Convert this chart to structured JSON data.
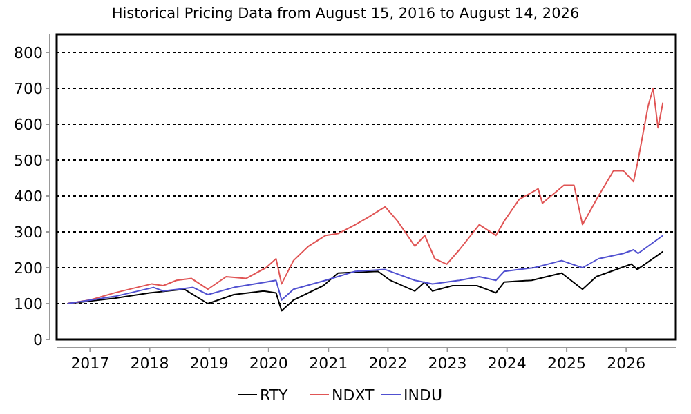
{
  "chart_data": {
    "type": "line",
    "title": "Historical Pricing Data from August 15, 2016 to August 14, 2026",
    "xlim": [
      "2016-06-10",
      "2026-11-01"
    ],
    "xticks": [
      "2017",
      "2018",
      "2019",
      "2020",
      "2021",
      "2022",
      "2023",
      "2024",
      "2025",
      "2026"
    ],
    "ylim": [
      0,
      850
    ],
    "yticks": [
      0,
      100,
      200,
      300,
      400,
      500,
      600,
      700,
      800
    ],
    "grid": "y",
    "legend": "bottom",
    "line_style": "solid",
    "series": [
      {
        "name": "RTY",
        "color": "#000000",
        "x": [
          "2016-08-15",
          "2017-06-01",
          "2018-01-01",
          "2018-08-01",
          "2018-12-24",
          "2019-06-01",
          "2019-12-01",
          "2020-02-15",
          "2020-03-20",
          "2020-06-01",
          "2020-12-01",
          "2021-03-01",
          "2021-11-01",
          "2022-01-15",
          "2022-06-15",
          "2022-08-15",
          "2022-10-01",
          "2023-02-01",
          "2023-07-01",
          "2023-10-25",
          "2023-12-15",
          "2024-06-01",
          "2024-12-01",
          "2025-04-08",
          "2025-07-01",
          "2025-12-01",
          "2026-02-01",
          "2026-03-10",
          "2026-08-14"
        ],
        "values": [
          100,
          115,
          130,
          140,
          100,
          125,
          135,
          130,
          80,
          110,
          150,
          185,
          190,
          165,
          135,
          160,
          135,
          150,
          150,
          130,
          160,
          165,
          185,
          140,
          175,
          200,
          210,
          195,
          245
        ]
      },
      {
        "name": "NDXT",
        "color": "#e05555",
        "x": [
          "2016-08-15",
          "2017-01-01",
          "2017-06-01",
          "2018-01-15",
          "2018-03-25",
          "2018-06-15",
          "2018-09-15",
          "2018-12-24",
          "2019-04-15",
          "2019-08-15",
          "2019-12-15",
          "2020-02-15",
          "2020-03-20",
          "2020-06-01",
          "2020-09-01",
          "2020-12-15",
          "2021-03-01",
          "2021-06-15",
          "2021-09-01",
          "2021-12-15",
          "2022-03-01",
          "2022-06-15",
          "2022-08-15",
          "2022-10-15",
          "2022-12-28",
          "2023-03-15",
          "2023-07-15",
          "2023-10-25",
          "2023-12-15",
          "2024-03-15",
          "2024-07-10",
          "2024-08-05",
          "2024-12-15",
          "2025-02-15",
          "2025-04-08",
          "2025-07-15",
          "2025-10-15",
          "2025-12-15",
          "2026-02-15",
          "2026-03-15",
          "2026-05-15",
          "2026-06-15",
          "2026-07-15",
          "2026-08-14"
        ],
        "values": [
          100,
          110,
          130,
          155,
          150,
          165,
          170,
          140,
          175,
          170,
          200,
          225,
          155,
          220,
          260,
          290,
          295,
          320,
          340,
          370,
          330,
          260,
          290,
          225,
          210,
          250,
          320,
          290,
          330,
          390,
          420,
          380,
          430,
          430,
          320,
          400,
          470,
          470,
          440,
          500,
          650,
          700,
          590,
          660
        ]
      },
      {
        "name": "INDU",
        "color": "#5050d0",
        "x": [
          "2016-08-15",
          "2017-06-01",
          "2018-01-25",
          "2018-03-25",
          "2018-09-25",
          "2018-12-24",
          "2019-06-01",
          "2019-12-15",
          "2020-02-15",
          "2020-03-20",
          "2020-06-01",
          "2020-12-15",
          "2021-06-15",
          "2021-12-15",
          "2022-06-15",
          "2022-10-01",
          "2023-03-15",
          "2023-07-15",
          "2023-10-25",
          "2023-12-15",
          "2024-06-15",
          "2024-12-01",
          "2025-04-08",
          "2025-07-15",
          "2025-12-15",
          "2026-02-15",
          "2026-03-15",
          "2026-08-14"
        ],
        "values": [
          100,
          120,
          145,
          135,
          145,
          125,
          145,
          160,
          165,
          110,
          140,
          165,
          190,
          195,
          165,
          155,
          165,
          175,
          165,
          190,
          200,
          220,
          200,
          225,
          240,
          250,
          240,
          290
        ]
      }
    ]
  }
}
